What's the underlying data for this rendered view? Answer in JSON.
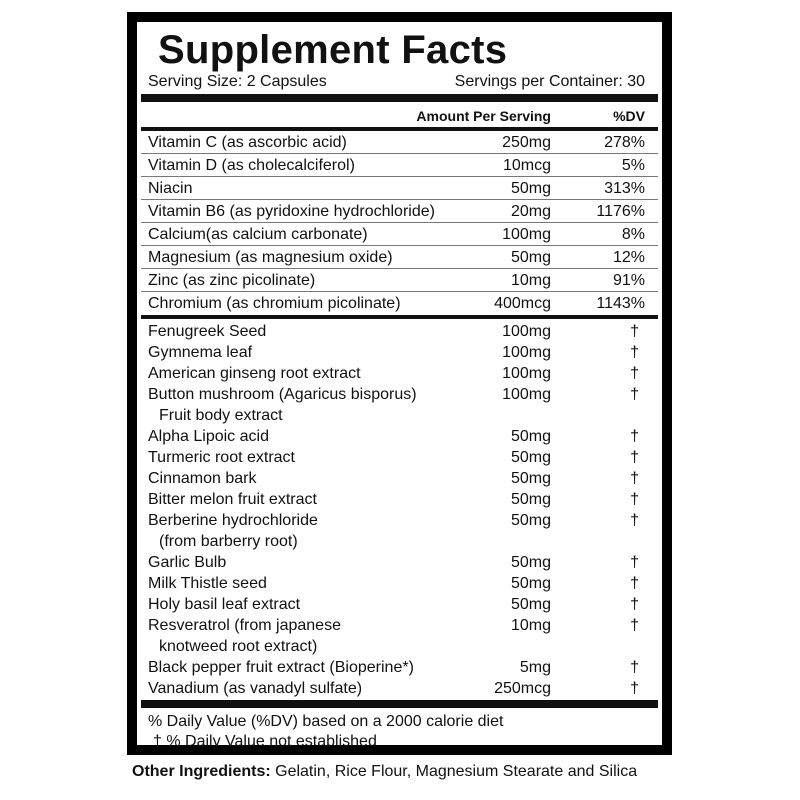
{
  "title": "Supplement Facts",
  "serving_size": "Serving Size: 2 Capsules",
  "servings_per_container": "Servings per Container: 30",
  "header": {
    "amount": "Amount Per Serving",
    "dv": "%DV"
  },
  "nutrients": [
    {
      "name": "Vitamin C (as ascorbic acid)",
      "amount": "250mg",
      "dv": "278%"
    },
    {
      "name": "Vitamin D (as cholecalciferol)",
      "amount": "10mcg",
      "dv": "5%"
    },
    {
      "name": "Niacin",
      "amount": "50mg",
      "dv": "313%"
    },
    {
      "name": "Vitamin B6 (as pyridoxine hydrochloride)",
      "amount": "20mg",
      "dv": "1176%"
    },
    {
      "name": "Calcium(as calcium carbonate)",
      "amount": "100mg",
      "dv": "8%"
    },
    {
      "name": "Magnesium (as magnesium oxide)",
      "amount": "50mg",
      "dv": "12%"
    },
    {
      "name": "Zinc (as zinc picolinate)",
      "amount": "10mg",
      "dv": "91%"
    },
    {
      "name": "Chromium (as chromium picolinate)",
      "amount": "400mcg",
      "dv": "1143%"
    }
  ],
  "botanicals": [
    {
      "name": "Fenugreek Seed",
      "amount": "100mg",
      "dv": "†"
    },
    {
      "name": "Gymnema leaf",
      "amount": "100mg",
      "dv": "†"
    },
    {
      "name": "American ginseng root extract",
      "amount": "100mg",
      "dv": "†"
    },
    {
      "name": "Button mushroom (Agaricus bisporus)",
      "name2": "Fruit body extract",
      "amount": "100mg",
      "dv": "†"
    },
    {
      "name": "Alpha Lipoic acid",
      "amount": "50mg",
      "dv": "†"
    },
    {
      "name": "Turmeric root extract",
      "amount": "50mg",
      "dv": "†"
    },
    {
      "name": "Cinnamon bark",
      "amount": "50mg",
      "dv": "†"
    },
    {
      "name": "Bitter melon fruit extract",
      "amount": "50mg",
      "dv": "†"
    },
    {
      "name": "Berberine hydrochloride",
      "name2": "(from barberry root)",
      "amount": "50mg",
      "dv": "†"
    },
    {
      "name": "Garlic Bulb",
      "amount": "50mg",
      "dv": "†"
    },
    {
      "name": "Milk Thistle seed",
      "amount": "50mg",
      "dv": "†"
    },
    {
      "name": "Holy basil leaf extract",
      "amount": "50mg",
      "dv": "†"
    },
    {
      "name": "Resveratrol (from japanese",
      "name2": "knotweed root extract)",
      "amount": "10mg",
      "dv": "†"
    },
    {
      "name": "Black pepper fruit extract (Bioperine*)",
      "amount": "5mg",
      "dv": "†"
    },
    {
      "name": "Vanadium (as vanadyl sulfate)",
      "amount": "250mcg",
      "dv": "†"
    }
  ],
  "footnotes": [
    "% Daily Value (%DV) based on a 2000 calorie diet",
    "† % Daily Value not established"
  ],
  "other_ingredients": {
    "label": "Other Ingredients:",
    "text": " Gelatin, Rice Flour, Magnesium Stearate and Silica"
  }
}
